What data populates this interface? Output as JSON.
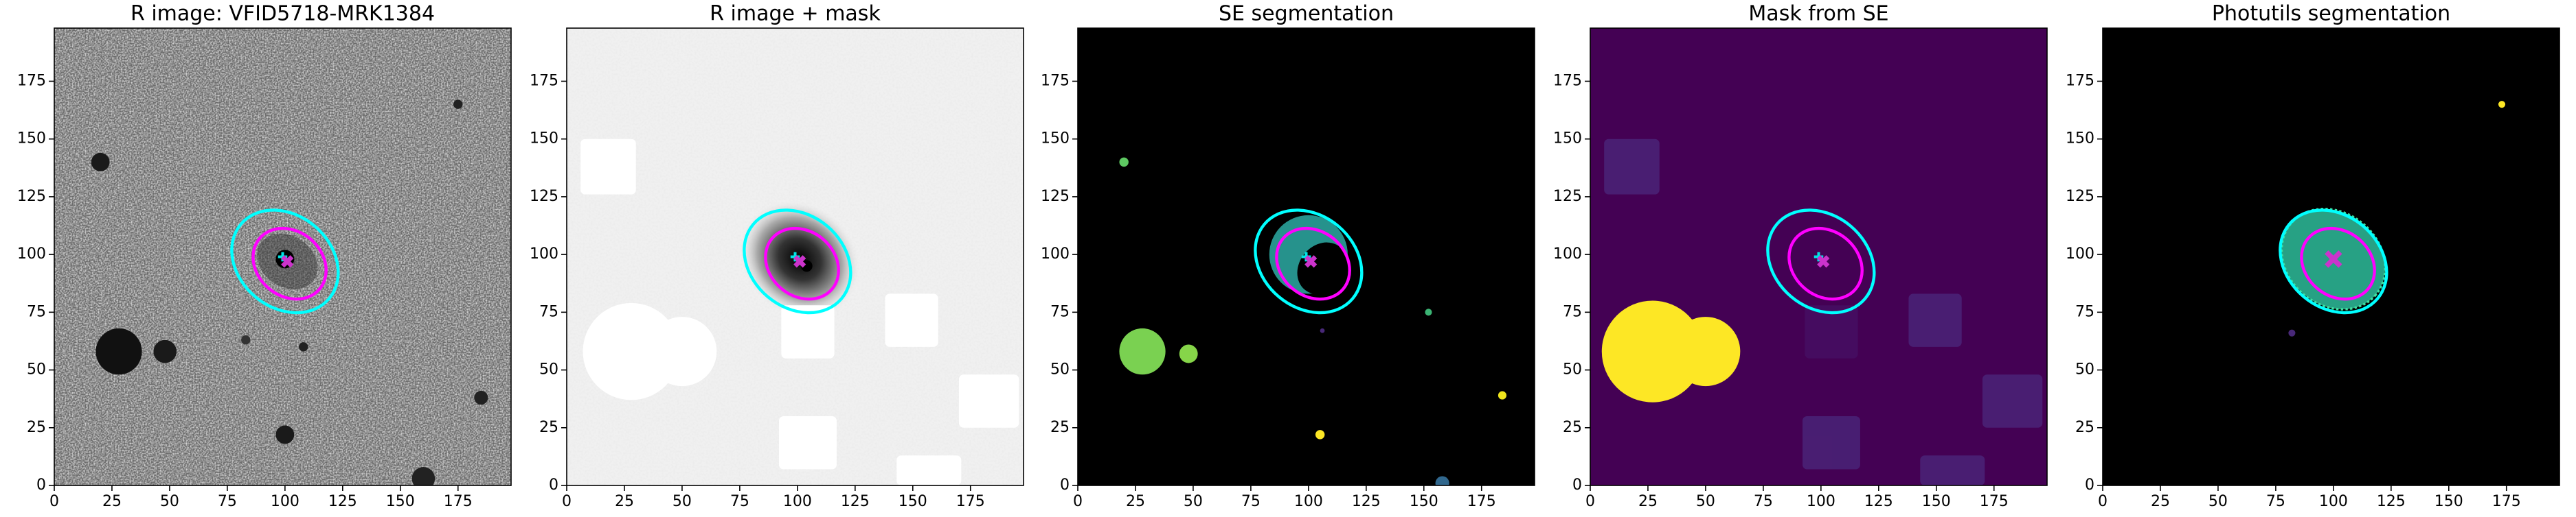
{
  "chart_data": [
    {
      "type": "image",
      "title": "R image: VFID5718-MRK1384",
      "xlim": [
        0,
        198
      ],
      "ylim": [
        0,
        198
      ],
      "xticks": [
        0,
        25,
        50,
        75,
        100,
        125,
        150,
        175
      ],
      "yticks": [
        0,
        25,
        50,
        75,
        100,
        125,
        150,
        175
      ]
    },
    {
      "type": "image",
      "title": "R image + mask",
      "xlim": [
        0,
        198
      ],
      "ylim": [
        0,
        198
      ],
      "xticks": [
        0,
        25,
        50,
        75,
        100,
        125,
        150,
        175
      ],
      "yticks": [
        0,
        25,
        50,
        75,
        100,
        125,
        150,
        175
      ]
    },
    {
      "type": "image",
      "title": "SE segmentation",
      "xlim": [
        0,
        198
      ],
      "ylim": [
        0,
        198
      ],
      "xticks": [
        0,
        25,
        50,
        75,
        100,
        125,
        150,
        175
      ],
      "yticks": [
        0,
        25,
        50,
        75,
        100,
        125,
        150,
        175
      ]
    },
    {
      "type": "image",
      "title": "Mask from SE",
      "xlim": [
        0,
        198
      ],
      "ylim": [
        0,
        198
      ],
      "xticks": [
        0,
        25,
        50,
        75,
        100,
        125,
        150,
        175
      ],
      "yticks": [
        0,
        25,
        50,
        75,
        100,
        125,
        150,
        175
      ]
    },
    {
      "type": "image",
      "title": "Photutils segmentation",
      "xlim": [
        0,
        198
      ],
      "ylim": [
        0,
        198
      ],
      "xticks": [
        0,
        25,
        50,
        75,
        100,
        125,
        150,
        175
      ],
      "yticks": [
        0,
        25,
        50,
        75,
        100,
        125,
        150,
        175
      ]
    }
  ]
}
